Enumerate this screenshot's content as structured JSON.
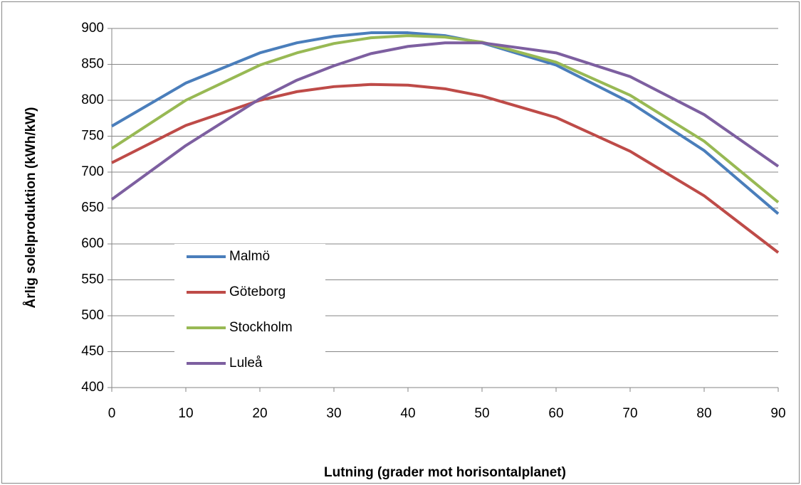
{
  "chart_data": {
    "type": "line",
    "x": [
      0,
      10,
      20,
      25,
      30,
      35,
      40,
      45,
      50,
      60,
      70,
      80,
      90
    ],
    "series": [
      {
        "name": "Malmö",
        "color": "#4a7ebb",
        "values": [
          764,
          824,
          866,
          880,
          889,
          894,
          894,
          890,
          880,
          849,
          797,
          730,
          642
        ]
      },
      {
        "name": "Göteborg",
        "color": "#be4b48",
        "values": [
          713,
          765,
          800,
          812,
          819,
          822,
          821,
          816,
          806,
          776,
          729,
          667,
          588
        ]
      },
      {
        "name": "Stockholm",
        "color": "#98b954",
        "values": [
          733,
          800,
          849,
          866,
          879,
          887,
          890,
          888,
          881,
          853,
          807,
          743,
          658
        ]
      },
      {
        "name": "Luleå",
        "color": "#7d5fa0",
        "values": [
          662,
          737,
          802,
          828,
          848,
          865,
          875,
          880,
          880,
          866,
          833,
          780,
          708
        ]
      }
    ],
    "xlim": [
      0,
      90
    ],
    "xticks": [
      0,
      10,
      20,
      30,
      40,
      50,
      60,
      70,
      80,
      90
    ],
    "ylim": [
      400,
      900
    ],
    "yticks": [
      400,
      450,
      500,
      550,
      600,
      650,
      700,
      750,
      800,
      850,
      900
    ],
    "grid": true,
    "legend": "left",
    "x_label": "Lutning (grader mot horisontalplanet)",
    "y_label": "Årlig solelproduktion (kWh/kW)"
  }
}
